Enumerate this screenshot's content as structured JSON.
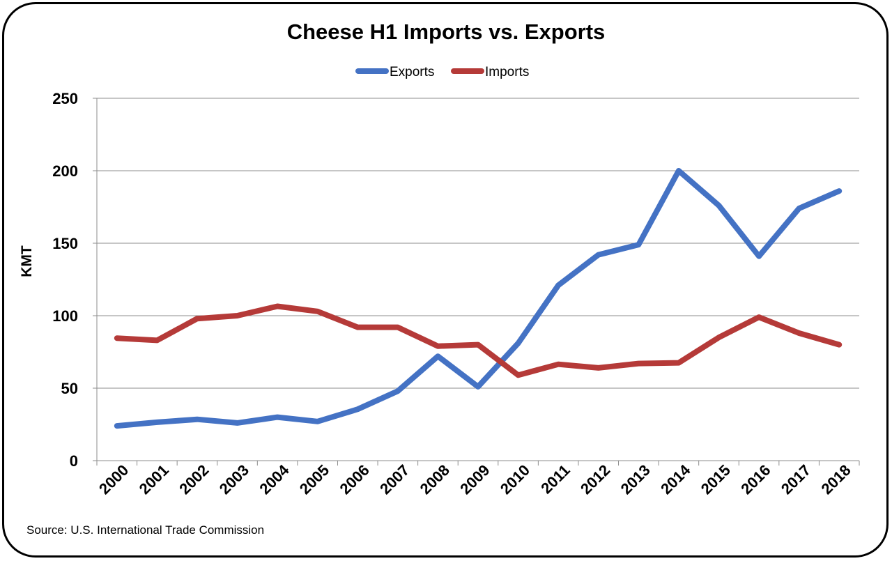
{
  "chart_data": {
    "type": "line",
    "title": "Cheese H1 Imports vs. Exports",
    "ylabel": "KMT",
    "xlabel": "",
    "ylim": [
      0,
      250
    ],
    "yticks": [
      0,
      50,
      100,
      150,
      200,
      250
    ],
    "grid": "horizontal",
    "legend_placement": "top-center",
    "categories": [
      "2000",
      "2001",
      "2002",
      "2003",
      "2004",
      "2005",
      "2006",
      "2007",
      "2008",
      "2009",
      "2010",
      "2011",
      "2012",
      "2013",
      "2014",
      "2015",
      "2016",
      "2017",
      "2018"
    ],
    "series": [
      {
        "name": "Exports",
        "color": "#4472C4",
        "values": [
          24,
          26.5,
          28.5,
          26,
          30,
          27,
          35.5,
          48,
          72,
          51,
          81,
          121,
          142,
          149,
          200,
          176,
          141,
          174,
          186
        ]
      },
      {
        "name": "Imports",
        "color": "#B53A38",
        "values": [
          84.5,
          83,
          98,
          100,
          106.5,
          103,
          92,
          92,
          79,
          80,
          59,
          66.5,
          64,
          67,
          67.5,
          85,
          99,
          88,
          80
        ]
      }
    ]
  },
  "source": "Source:  U.S. International Trade Commission"
}
